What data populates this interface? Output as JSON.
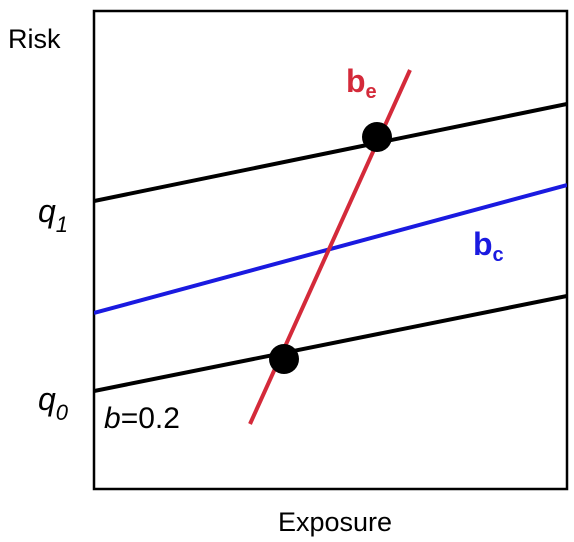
{
  "axes": {
    "y_label": "Risk",
    "x_label": "Exposure"
  },
  "labels": {
    "q1_base": "q",
    "q1_sub": "1",
    "q0_base": "q",
    "q0_sub": "0",
    "slope_b": "b",
    "slope_value": "=0.2",
    "be_base": "b",
    "be_sub": "e",
    "bc_base": "b",
    "bc_sub": "c"
  },
  "colors": {
    "black_lines": "#000000",
    "blue_line": "#1a1ae0",
    "red_line": "#d42a3a",
    "red_label": "#d42a3a",
    "blue_label": "#1a1ae0"
  }
}
